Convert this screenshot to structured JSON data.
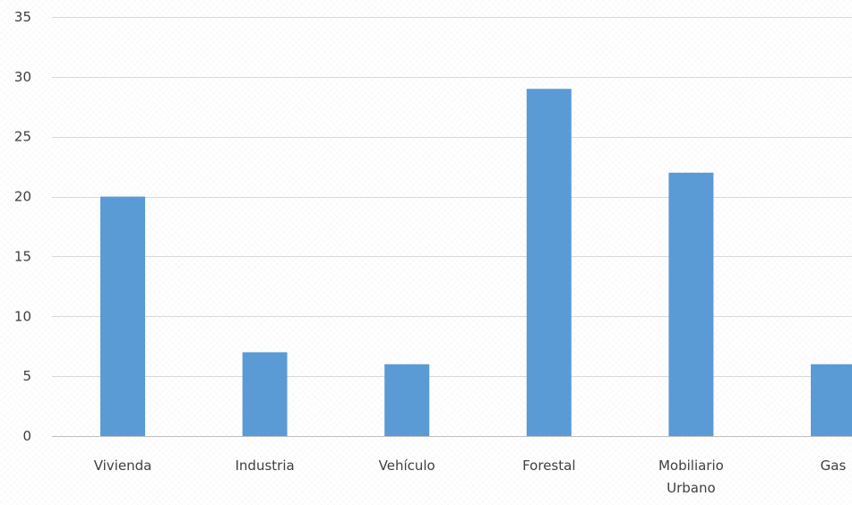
{
  "chart_data": {
    "type": "bar",
    "categories": [
      "Vivienda",
      "Industria",
      "Vehículo",
      "Forestal",
      "Mobiliario Urbano",
      "Gas"
    ],
    "category_label_lines": [
      [
        "Vivienda"
      ],
      [
        "Industria"
      ],
      [
        "Vehículo"
      ],
      [
        "Forestal"
      ],
      [
        "Mobiliario",
        "Urbano"
      ],
      [
        "Gas"
      ]
    ],
    "values": [
      20,
      7,
      6,
      29,
      22,
      6
    ],
    "title": "",
    "xlabel": "",
    "ylabel": "",
    "ylim": [
      0,
      35
    ],
    "yticks": [
      0,
      5,
      10,
      15,
      20,
      25,
      30,
      35
    ],
    "grid": true,
    "bar_color": "#5b9bd5",
    "grid_color": "#d9d9d9",
    "axis_color": "#bfbfbf"
  }
}
